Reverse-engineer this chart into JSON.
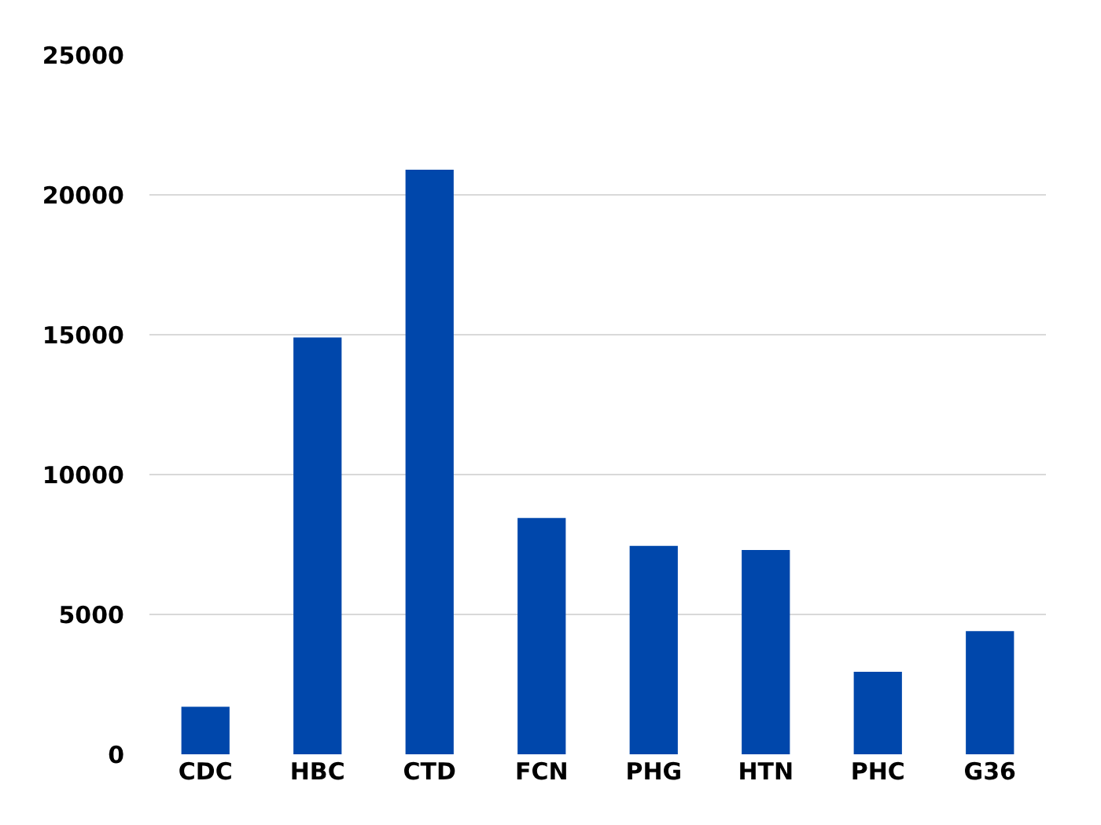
{
  "chart_data": {
    "type": "bar",
    "categories": [
      "CDC",
      "HBC",
      "CTD",
      "FCN",
      "PHG",
      "HTN",
      "PHC",
      "G36"
    ],
    "values": [
      1700,
      14900,
      20900,
      8450,
      7450,
      7300,
      2950,
      4400
    ],
    "color": "#0047ab",
    "ylim": [
      0,
      25000
    ],
    "yticks": [
      0,
      5000,
      10000,
      15000,
      20000,
      25000
    ],
    "grid": "y"
  }
}
